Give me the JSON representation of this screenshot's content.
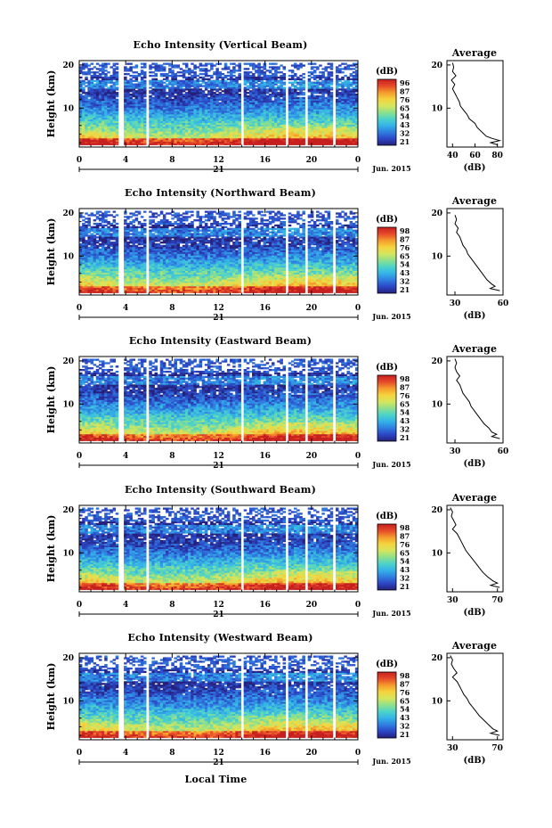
{
  "figure": {
    "xlabel": "Local Time",
    "x_ticks": [
      "0",
      "4",
      "8",
      "12",
      "16",
      "20",
      "0"
    ],
    "day_label": "21",
    "month_label": "Jun. 2015",
    "colorbar_unit": "(dB)",
    "y_label": "Height (km)",
    "avg_title": "Average",
    "avg_xlabel": "(dB)",
    "colors": {
      "palette": [
        "#25207a",
        "#2c46c6",
        "#2f7ee0",
        "#34b3e8",
        "#4dd3c9",
        "#8fe08a",
        "#d6e65c",
        "#f5d33d",
        "#f59a2c",
        "#e6492a",
        "#c61f1f"
      ],
      "gap": "#ffffff"
    }
  },
  "chart_data": [
    {
      "type": "heatmap",
      "title": "Echo Intensity (Vertical Beam)",
      "y_ticks": [
        "20",
        "10"
      ],
      "xlim_hours": [
        0,
        24
      ],
      "ylim_km": [
        1.5,
        20.5
      ],
      "colorbar_ticks": [
        "96",
        "87",
        "76",
        "65",
        "54",
        "43",
        "32",
        "21"
      ],
      "data_gaps_hours": [
        [
          3.45,
          3.75
        ],
        [
          5.8,
          6.05
        ],
        [
          14.0,
          14.25
        ],
        [
          17.8,
          18.05
        ],
        [
          19.5,
          19.75
        ],
        [
          21.9,
          22.2
        ]
      ],
      "intensity_profile": {
        "low_dB": 35,
        "high_dB": 85
      },
      "average": {
        "xlim": [
          35,
          85
        ],
        "x_ticks": [
          "40",
          "60",
          "80"
        ],
        "profile": [
          [
            20.5,
            40
          ],
          [
            19.5,
            41
          ],
          [
            18.5,
            40
          ],
          [
            17.5,
            43
          ],
          [
            16.5,
            39
          ],
          [
            15.5,
            42
          ],
          [
            14.5,
            40
          ],
          [
            13.5,
            42
          ],
          [
            12.5,
            44
          ],
          [
            11.5,
            46
          ],
          [
            10.5,
            47
          ],
          [
            9.5,
            50
          ],
          [
            8.5,
            53
          ],
          [
            7.5,
            55
          ],
          [
            6.5,
            60
          ],
          [
            5.5,
            62
          ],
          [
            4.5,
            66
          ],
          [
            3.5,
            70
          ],
          [
            3.0,
            75
          ],
          [
            2.5,
            82
          ],
          [
            2.0,
            74
          ],
          [
            1.5,
            80
          ]
        ]
      }
    },
    {
      "type": "heatmap",
      "title": "Echo Intensity (Northward Beam)",
      "y_ticks": [
        "20",
        "10"
      ],
      "xlim_hours": [
        0,
        24
      ],
      "ylim_km": [
        1.5,
        20.5
      ],
      "colorbar_ticks": [
        "98",
        "87",
        "76",
        "65",
        "54",
        "43",
        "32",
        "21"
      ],
      "data_gaps_hours": [
        [
          3.45,
          3.75
        ],
        [
          5.8,
          6.05
        ],
        [
          14.0,
          14.25
        ],
        [
          17.8,
          18.05
        ],
        [
          19.5,
          19.75
        ],
        [
          21.9,
          22.2
        ]
      ],
      "intensity_profile": {
        "low_dB": 30,
        "high_dB": 78
      },
      "average": {
        "xlim": [
          25,
          60
        ],
        "x_ticks": [
          "30",
          "60"
        ],
        "profile": [
          [
            19.5,
            30
          ],
          [
            18.5,
            31
          ],
          [
            17.5,
            30
          ],
          [
            16.5,
            32
          ],
          [
            15.5,
            31
          ],
          [
            14.5,
            33
          ],
          [
            13.5,
            34
          ],
          [
            12.5,
            35
          ],
          [
            11.5,
            37
          ],
          [
            10.5,
            38
          ],
          [
            9.5,
            40
          ],
          [
            8.5,
            42
          ],
          [
            7.5,
            44
          ],
          [
            6.5,
            46
          ],
          [
            5.5,
            48
          ],
          [
            4.5,
            50
          ],
          [
            3.5,
            53
          ],
          [
            3.0,
            55
          ],
          [
            2.5,
            52
          ],
          [
            2.0,
            58
          ]
        ]
      }
    },
    {
      "type": "heatmap",
      "title": "Echo Intensity (Eastward Beam)",
      "y_ticks": [
        "20",
        "10"
      ],
      "xlim_hours": [
        0,
        24
      ],
      "ylim_km": [
        1.5,
        20.5
      ],
      "colorbar_ticks": [
        "98",
        "87",
        "76",
        "65",
        "54",
        "43",
        "32",
        "21"
      ],
      "data_gaps_hours": [
        [
          3.45,
          3.75
        ],
        [
          5.8,
          6.05
        ],
        [
          14.0,
          14.25
        ],
        [
          17.8,
          18.05
        ],
        [
          19.5,
          19.75
        ],
        [
          21.9,
          22.2
        ]
      ],
      "intensity_profile": {
        "low_dB": 30,
        "high_dB": 80
      },
      "average": {
        "xlim": [
          25,
          60
        ],
        "x_ticks": [
          "30",
          "60"
        ],
        "profile": [
          [
            20.5,
            30
          ],
          [
            19.5,
            31
          ],
          [
            18.5,
            30
          ],
          [
            17.5,
            31
          ],
          [
            16.5,
            33
          ],
          [
            15.5,
            31
          ],
          [
            14.5,
            33
          ],
          [
            13.5,
            34
          ],
          [
            12.5,
            35
          ],
          [
            11.5,
            37
          ],
          [
            10.5,
            39
          ],
          [
            9.5,
            40
          ],
          [
            8.5,
            42
          ],
          [
            7.5,
            44
          ],
          [
            6.5,
            46
          ],
          [
            5.5,
            48
          ],
          [
            4.5,
            51
          ],
          [
            3.5,
            53
          ],
          [
            3.0,
            56
          ],
          [
            2.5,
            53
          ],
          [
            2.0,
            58
          ]
        ]
      }
    },
    {
      "type": "heatmap",
      "title": "Echo Intensity (Southward Beam)",
      "y_ticks": [
        "20",
        "10"
      ],
      "xlim_hours": [
        0,
        24
      ],
      "ylim_km": [
        1.5,
        20.5
      ],
      "colorbar_ticks": [
        "98",
        "87",
        "76",
        "65",
        "54",
        "43",
        "32",
        "21"
      ],
      "data_gaps_hours": [
        [
          3.45,
          3.75
        ],
        [
          5.8,
          6.05
        ],
        [
          14.0,
          14.25
        ],
        [
          17.8,
          18.05
        ],
        [
          19.5,
          19.75
        ],
        [
          21.9,
          22.2
        ]
      ],
      "intensity_profile": {
        "low_dB": 30,
        "high_dB": 78
      },
      "average": {
        "xlim": [
          25,
          75
        ],
        "x_ticks": [
          "30",
          "70"
        ],
        "profile": [
          [
            20.5,
            28
          ],
          [
            19.5,
            30
          ],
          [
            18.5,
            29
          ],
          [
            17.5,
            31
          ],
          [
            16.5,
            33
          ],
          [
            15.5,
            30
          ],
          [
            14.5,
            34
          ],
          [
            13.5,
            36
          ],
          [
            12.5,
            38
          ],
          [
            11.5,
            40
          ],
          [
            10.5,
            42
          ],
          [
            9.5,
            45
          ],
          [
            8.5,
            48
          ],
          [
            7.5,
            51
          ],
          [
            6.5,
            54
          ],
          [
            5.5,
            57
          ],
          [
            4.5,
            61
          ],
          [
            3.5,
            66
          ],
          [
            3.0,
            70
          ],
          [
            2.5,
            64
          ],
          [
            2.0,
            72
          ]
        ]
      }
    },
    {
      "type": "heatmap",
      "title": "Echo Intensity (Westward Beam)",
      "y_ticks": [
        "20",
        "10"
      ],
      "xlim_hours": [
        0,
        24
      ],
      "ylim_km": [
        1.5,
        20.5
      ],
      "colorbar_ticks": [
        "98",
        "87",
        "76",
        "65",
        "54",
        "43",
        "32",
        "21"
      ],
      "data_gaps_hours": [
        [
          3.45,
          3.75
        ],
        [
          5.8,
          6.05
        ],
        [
          14.0,
          14.25
        ],
        [
          17.8,
          18.05
        ],
        [
          19.5,
          19.75
        ],
        [
          21.9,
          22.2
        ]
      ],
      "intensity_profile": {
        "low_dB": 30,
        "high_dB": 80
      },
      "average": {
        "xlim": [
          25,
          75
        ],
        "x_ticks": [
          "30",
          "70"
        ],
        "profile": [
          [
            20.5,
            28
          ],
          [
            19.5,
            30
          ],
          [
            18.5,
            29
          ],
          [
            17.5,
            31
          ],
          [
            16.5,
            34
          ],
          [
            15.5,
            30
          ],
          [
            14.5,
            34
          ],
          [
            13.5,
            36
          ],
          [
            12.5,
            38
          ],
          [
            11.5,
            40
          ],
          [
            10.5,
            43
          ],
          [
            9.5,
            45
          ],
          [
            8.5,
            48
          ],
          [
            7.5,
            51
          ],
          [
            6.5,
            54
          ],
          [
            5.5,
            58
          ],
          [
            4.5,
            62
          ],
          [
            3.5,
            66
          ],
          [
            3.0,
            70
          ],
          [
            2.5,
            64
          ],
          [
            2.0,
            72
          ]
        ]
      }
    }
  ]
}
